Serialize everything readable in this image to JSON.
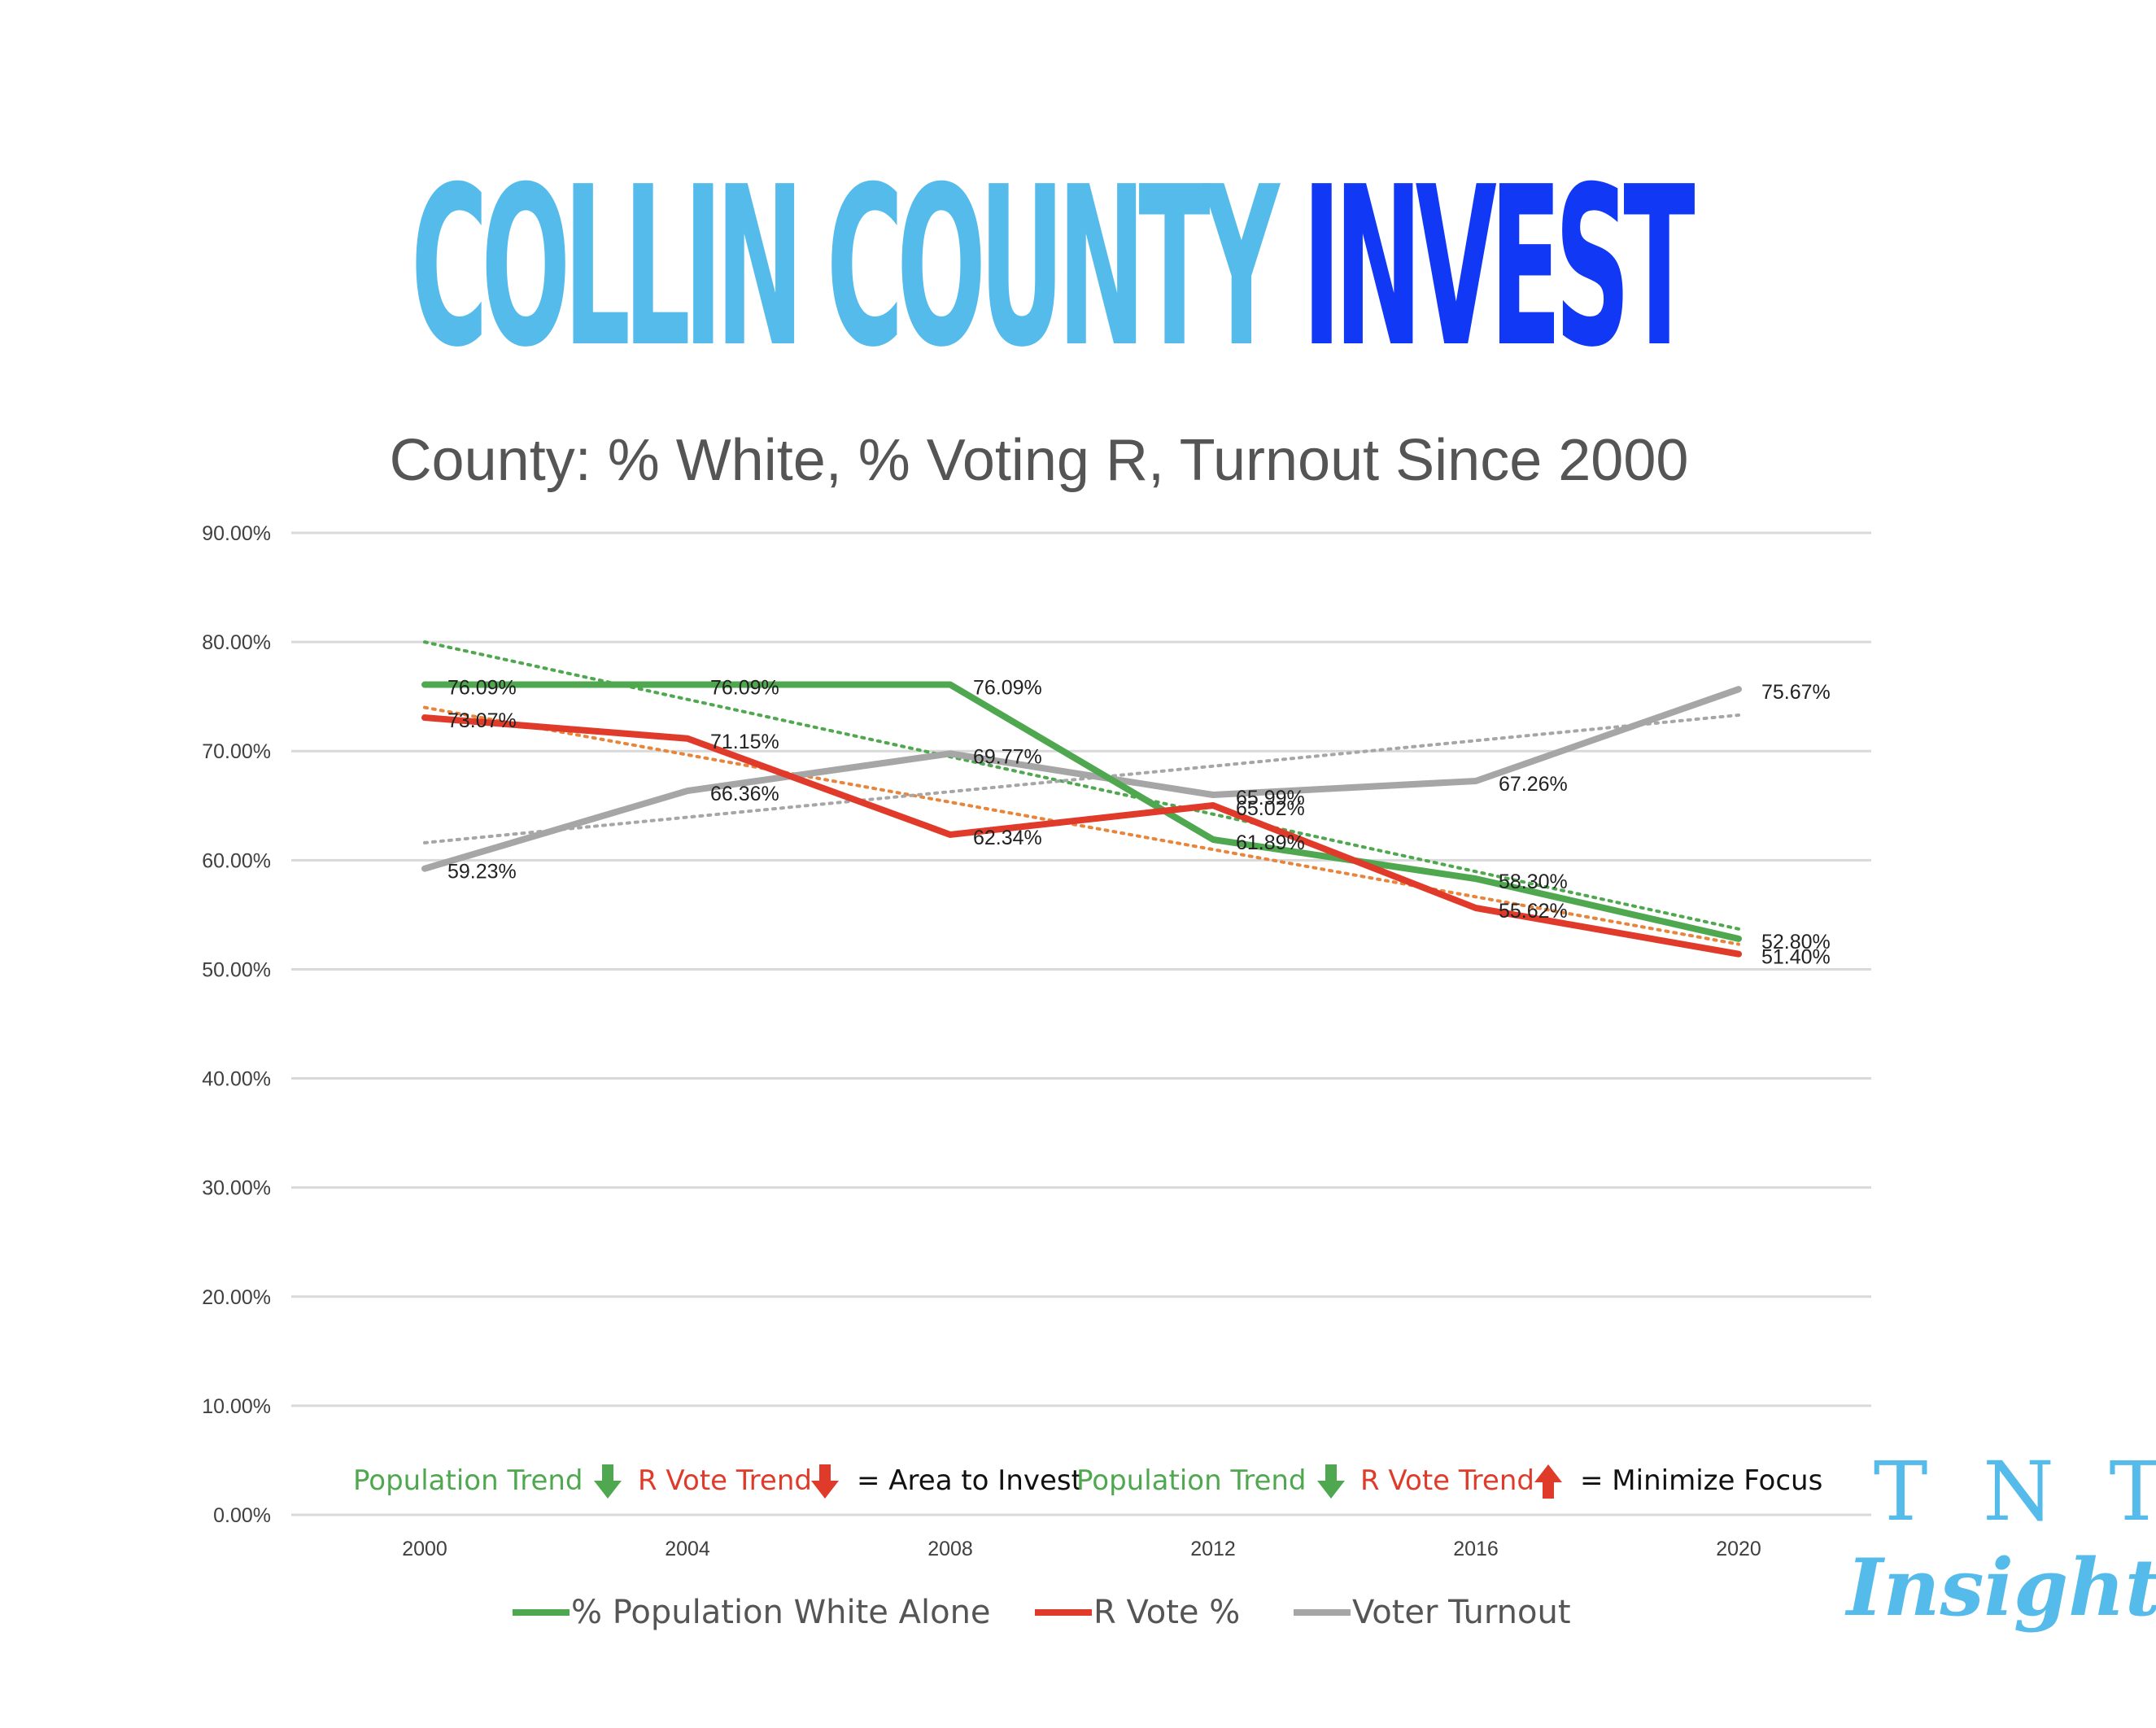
{
  "header": {
    "brand_part1": "COLLIN COUNTY",
    "brand_part2": "INVEST",
    "brand_color1": "#55bbea",
    "brand_color2": "#1138f5"
  },
  "chart_data": {
    "type": "line",
    "title": "County: % White, % Voting R, Turnout Since 2000",
    "xlabel": "",
    "ylabel": "",
    "categories": [
      "2000",
      "2004",
      "2008",
      "2012",
      "2016",
      "2020"
    ],
    "ylim": [
      0,
      90
    ],
    "yticks": [
      0,
      10,
      20,
      30,
      40,
      50,
      60,
      70,
      80,
      90
    ],
    "ytick_labels": [
      "0.00%",
      "10.00%",
      "20.00%",
      "30.00%",
      "40.00%",
      "50.00%",
      "60.00%",
      "70.00%",
      "80.00%",
      "90.00%"
    ],
    "grid": true,
    "legend_position": "bottom",
    "series": [
      {
        "name": "% Population White Alone",
        "color": "#4fa84f",
        "values": [
          76.09,
          76.09,
          76.09,
          61.89,
          58.3,
          52.8
        ],
        "labels": [
          "76.09%",
          "76.09%",
          "76.09%",
          "61.89%",
          "58.30%",
          "52.80%"
        ],
        "trendline": [
          80.0,
          53.7
        ],
        "trend_color": "#4fa84f"
      },
      {
        "name": "R Vote %",
        "color": "#e03a2a",
        "values": [
          73.07,
          71.15,
          62.34,
          65.02,
          55.62,
          51.4
        ],
        "labels": [
          "73.07%",
          "71.15%",
          "62.34%",
          "65.02%",
          "55.62%",
          "51.40%"
        ],
        "trendline": [
          74.0,
          52.3
        ],
        "trend_color": "#e8853a"
      },
      {
        "name": "Voter Turnout",
        "color": "#a6a6a6",
        "values": [
          59.23,
          66.36,
          69.77,
          65.99,
          67.26,
          75.67
        ],
        "labels": [
          "59.23%",
          "66.36%",
          "69.77%",
          "65.99%",
          "67.26%",
          "75.67%"
        ],
        "trendline": [
          61.6,
          73.3
        ],
        "trend_color": "#a6a6a6"
      }
    ],
    "annotation": {
      "pop_trend": "Population Trend",
      "r_trend": "R Vote Trend",
      "invest_text": "= Area to Invest",
      "minimize_text": "= Minimize Focus",
      "green": "#4fa84f",
      "red": "#e03a2a"
    }
  },
  "logo": {
    "line1": "T N T",
    "line2": "Insights",
    "color": "#55bbea"
  }
}
